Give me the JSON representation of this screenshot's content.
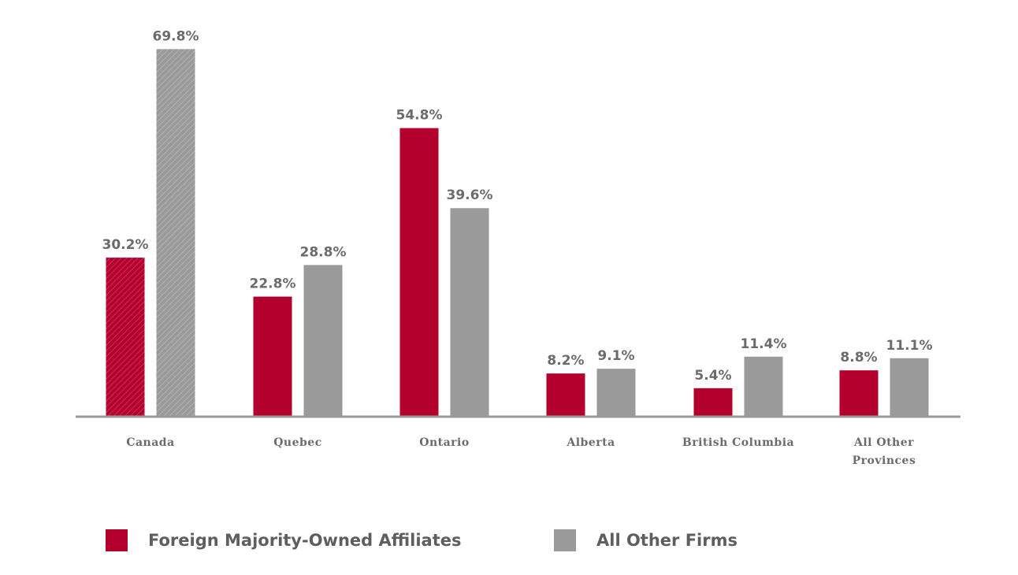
{
  "colors": {
    "foreign": "#b4002d",
    "other": "#9a9a9a",
    "axis": "#9a9a9a",
    "text": "#6b6b6b"
  },
  "chart_data": {
    "type": "bar",
    "categories": [
      [
        "Canada"
      ],
      [
        "Quebec"
      ],
      [
        "Ontario"
      ],
      [
        "Alberta"
      ],
      [
        "British Columbia"
      ],
      [
        "All Other",
        "Provinces"
      ]
    ],
    "series": [
      {
        "name": "Foreign Majority-Owned Affiliates",
        "values": [
          30.2,
          22.8,
          54.8,
          8.2,
          5.4,
          8.8
        ],
        "labels": [
          "30.2%",
          "22.8%",
          "54.8%",
          "8.2%",
          "5.4%",
          "8.8%"
        ]
      },
      {
        "name": "All Other Firms",
        "values": [
          69.8,
          28.8,
          39.6,
          9.1,
          11.4,
          11.1
        ],
        "labels": [
          "69.8%",
          "28.8%",
          "39.6%",
          "9.1%",
          "11.4%",
          "11.1%"
        ]
      }
    ],
    "hatched_group": "Canada",
    "ylim": [
      0,
      70
    ],
    "grid": false,
    "legend_position": "bottom-left"
  }
}
